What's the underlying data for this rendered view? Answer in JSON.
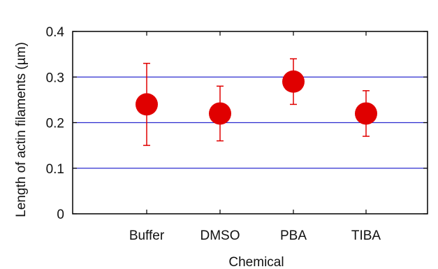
{
  "chart_data": {
    "type": "scatter",
    "title": "",
    "xlabel": "Chemical",
    "ylabel": "Length of actin filaments (µm)",
    "categories": [
      "Buffer",
      "DMSO",
      "PBA",
      "TIBA"
    ],
    "values": [
      0.24,
      0.22,
      0.29,
      0.22
    ],
    "error_low": [
      0.15,
      0.16,
      0.24,
      0.17
    ],
    "error_high": [
      0.33,
      0.28,
      0.34,
      0.27
    ],
    "ylim": [
      0,
      0.4
    ],
    "yticks": [
      "0",
      "0.1",
      "0.2",
      "0.3",
      "0.4"
    ],
    "gridlines_y": [
      0.1,
      0.2,
      0.3
    ],
    "colors": {
      "marker": "#e00000",
      "grid": "#2b2bcf",
      "axis": "#000000"
    }
  }
}
